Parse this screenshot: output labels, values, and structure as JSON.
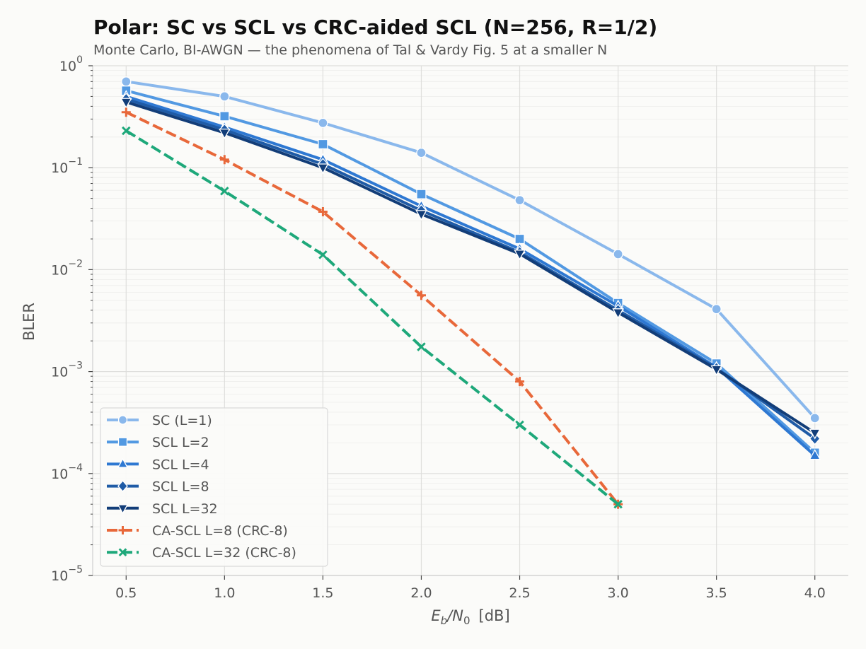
{
  "chart_data": {
    "type": "line",
    "title": "Polar: SC vs SCL vs CRC-aided SCL (N=256, R=1/2)",
    "subtitle": "Monte Carlo, BI-AWGN — the phenomena of Tal & Vardy Fig. 5 at a smaller N",
    "xlabel": {
      "var": "E",
      "sub": "b",
      "mid": "/N",
      "sub2": "0",
      "unit": "[dB]"
    },
    "ylabel": "BLER",
    "y_scale": "log",
    "xlim": [
      0.33,
      4.17
    ],
    "ylim": [
      1e-05,
      1.0
    ],
    "x_ticks": [
      "0.5",
      "1.0",
      "1.5",
      "2.0",
      "2.5",
      "3.0",
      "3.5",
      "4.0"
    ],
    "y_ticks": [
      {
        "base": "10",
        "exp": "0"
      },
      {
        "base": "10",
        "exp": "−1"
      },
      {
        "base": "10",
        "exp": "−2"
      },
      {
        "base": "10",
        "exp": "−3"
      },
      {
        "base": "10",
        "exp": "−4"
      },
      {
        "base": "10",
        "exp": "−5"
      }
    ],
    "grid": true,
    "legend_position": "bottom-left",
    "series": [
      {
        "name": "SC  (L=1)",
        "color": "#8ab8ec",
        "marker": "circle",
        "dash": "solid",
        "x": [
          0.5,
          1.0,
          1.5,
          2.0,
          2.5,
          3.0,
          3.5,
          4.0
        ],
        "y": [
          0.7,
          0.5,
          0.275,
          0.14,
          0.048,
          0.0142,
          0.0041,
          0.00035
        ]
      },
      {
        "name": "SCL L=2",
        "color": "#5299e2",
        "marker": "square",
        "dash": "solid",
        "x": [
          0.5,
          1.0,
          1.5,
          2.0,
          2.5,
          3.0,
          3.5,
          4.0
        ],
        "y": [
          0.57,
          0.32,
          0.17,
          0.055,
          0.02,
          0.0047,
          0.0012,
          0.00016
        ]
      },
      {
        "name": "SCL L=4",
        "color": "#2e78d2",
        "marker": "triangle-up",
        "dash": "solid",
        "x": [
          0.5,
          1.0,
          1.5,
          2.0,
          2.5,
          3.0,
          3.5,
          4.0
        ],
        "y": [
          0.5,
          0.25,
          0.12,
          0.042,
          0.016,
          0.0044,
          0.0011,
          0.00015
        ]
      },
      {
        "name": "SCL L=8",
        "color": "#1f5ba6",
        "marker": "diamond",
        "dash": "solid",
        "x": [
          0.5,
          1.0,
          1.5,
          2.0,
          2.5,
          3.0,
          3.5,
          4.0
        ],
        "y": [
          0.47,
          0.235,
          0.108,
          0.038,
          0.0148,
          0.004,
          0.00108,
          0.00022
        ]
      },
      {
        "name": "SCL L=32",
        "color": "#123d78",
        "marker": "triangle-down",
        "dash": "solid",
        "x": [
          0.5,
          1.0,
          1.5,
          2.0,
          2.5,
          3.0,
          3.5,
          4.0
        ],
        "y": [
          0.44,
          0.22,
          0.1,
          0.035,
          0.0143,
          0.0038,
          0.00105,
          0.00025
        ]
      },
      {
        "name": "CA-SCL L=8 (CRC-8)",
        "color": "#e8683a",
        "marker": "plus",
        "dash": "dashed",
        "x": [
          0.5,
          1.0,
          1.5,
          2.0,
          2.5,
          3.0
        ],
        "y": [
          0.35,
          0.12,
          0.037,
          0.0056,
          0.0008,
          5e-05
        ]
      },
      {
        "name": "CA-SCL L=32 (CRC-8)",
        "color": "#1ea87a",
        "marker": "x",
        "dash": "dashed",
        "x": [
          0.5,
          1.0,
          1.5,
          2.0,
          2.5,
          3.0
        ],
        "y": [
          0.23,
          0.059,
          0.014,
          0.00175,
          0.0003,
          5e-05
        ]
      }
    ]
  }
}
